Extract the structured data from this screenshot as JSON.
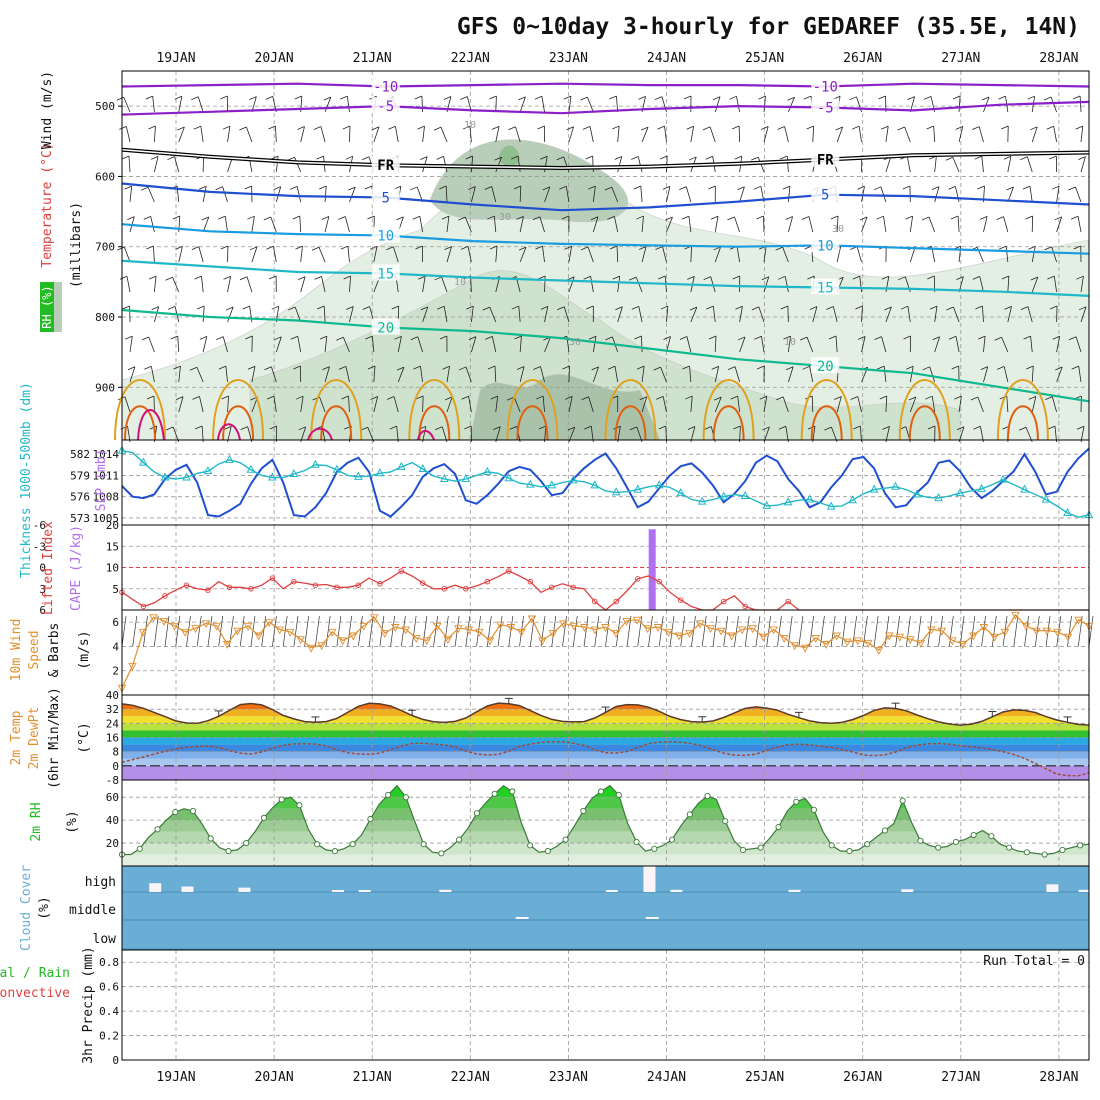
{
  "title": "GFS 0~10day 3-hourly for GEDAREF (35.5E, 14N)",
  "colors": {
    "purple": "#8b1fc8",
    "blue": "#1f4fd0",
    "lightblue": "#1a9ce0",
    "cyan": "#20b8c8",
    "teal": "#10b890",
    "orange": "#e0a020",
    "darkorange": "#e06010",
    "magenta": "#d0107a",
    "red": "#e04040",
    "cape": "#b070f0",
    "wind10": "#e09030",
    "green": "#22bb22",
    "cloud": "#6aaed6",
    "frontline": "#000000"
  },
  "chart_data": [
    {
      "type": "contour",
      "panel": "upper-air",
      "ylabel_parts": [
        "RH (%)",
        "Temperature (°C)",
        "Wind (m/s)"
      ],
      "ylabel_unit": "(millibars)",
      "y_ticks": [
        500,
        600,
        700,
        800,
        900
      ],
      "ylim": [
        450,
        975
      ],
      "dates": [
        "19JAN",
        "20JAN",
        "21JAN",
        "22JAN",
        "23JAN",
        "24JAN",
        "25JAN",
        "26JAN",
        "27JAN",
        "28JAN"
      ],
      "temperature_isotherms": [
        {
          "label": "-10",
          "color": "purple",
          "levels": [
            472,
            470,
            468,
            472,
            470,
            468,
            470,
            470,
            472,
            468,
            470,
            472
          ]
        },
        {
          "label": "-5",
          "color": "purple",
          "levels": [
            512,
            508,
            504,
            500,
            506,
            510,
            504,
            500,
            502,
            506,
            498,
            494
          ]
        },
        {
          "label": "FR",
          "color": "frontline",
          "levels": [
            562,
            572,
            580,
            584,
            586,
            588,
            586,
            582,
            576,
            570,
            568,
            566
          ]
        },
        {
          "label": "5",
          "color": "blue",
          "levels": [
            610,
            622,
            628,
            630,
            640,
            648,
            644,
            636,
            626,
            628,
            634,
            640
          ]
        },
        {
          "label": "10",
          "color": "lightblue",
          "levels": [
            668,
            678,
            682,
            684,
            692,
            696,
            698,
            700,
            698,
            702,
            706,
            710
          ]
        },
        {
          "label": "15",
          "color": "cyan",
          "levels": [
            720,
            728,
            736,
            738,
            744,
            748,
            752,
            756,
            758,
            760,
            764,
            770
          ]
        },
        {
          "label": "20",
          "color": "teal",
          "levels": [
            790,
            800,
            805,
            815,
            820,
            830,
            845,
            860,
            870,
            880,
            900,
            920
          ]
        }
      ],
      "rh_labels": [
        "10",
        "30",
        "30",
        "10",
        "30",
        "10"
      ]
    },
    {
      "type": "line",
      "panel": "thickness-slp",
      "ylabel_left": "Thickness 1000-500mb (dm)",
      "ylabel_right": "SLP (mb)",
      "thickness_ticks": [
        582,
        579,
        576,
        573
      ],
      "slp_ticks": [
        1014,
        1011,
        1008,
        1005
      ],
      "slp_range": [
        1004,
        1016
      ],
      "slp": [
        1009.5,
        1008,
        1007.8,
        1008.3,
        1010.5,
        1011.8,
        1012.5,
        1010,
        1005.4,
        1005.2,
        1006,
        1007,
        1009.8,
        1012,
        1013.2,
        1010,
        1005.4,
        1005.2,
        1006.5,
        1008.5,
        1011.5,
        1012.8,
        1013.5,
        1011.5,
        1006,
        1005.2,
        1006.6,
        1008.2,
        1010.8,
        1012,
        1012.6,
        1011.2,
        1007.5,
        1007,
        1008.2,
        1009.8,
        1011.6,
        1012.2,
        1011.8,
        1010.2,
        1008.2,
        1008.5,
        1010.5,
        1012,
        1013.2,
        1014.1,
        1012,
        1009.3,
        1006.5,
        1007.3,
        1009.2,
        1011,
        1012.3,
        1012.7,
        1011.4,
        1009.6,
        1007.2,
        1008.4,
        1010.2,
        1012.8,
        1013.8,
        1013,
        1010.5,
        1008.8,
        1006.5,
        1007.2,
        1009.3,
        1011,
        1013.3,
        1013.6,
        1012,
        1008.5,
        1006.5,
        1006.8,
        1008.6,
        1010,
        1012.8,
        1013.1,
        1011.6,
        1009.3,
        1007.8,
        1008.8,
        1010.2,
        1011.6,
        1014,
        1011.5,
        1008.3,
        1008.7,
        1011.5,
        1013.4,
        1014.8
      ],
      "thickness_range": [
        572,
        584
      ],
      "thickness": [
        582.5,
        582.2,
        580.8,
        579.5,
        578.7,
        578.5,
        578.7,
        579.3,
        579.6,
        580.6,
        581.2,
        580.8,
        579.8,
        579,
        578.7,
        578.7,
        579.2,
        579.7,
        580.5,
        580.4,
        579.8,
        579,
        578.8,
        578.9,
        579.3,
        579.5,
        580.2,
        580.8,
        579.9,
        578.9,
        578.5,
        578.2,
        578.5,
        579,
        579.5,
        579.3,
        578.6,
        577.9,
        577.7,
        577.4,
        577.6,
        578,
        578.3,
        578.1,
        577.6,
        576.8,
        576.6,
        576.7,
        577,
        577.4,
        577.6,
        577.3,
        576.5,
        575.6,
        575.3,
        575.6,
        576,
        576.3,
        576.1,
        575.4,
        574.7,
        574.8,
        575.2,
        575.5,
        575.6,
        575.1,
        574.6,
        574.7,
        575.5,
        576.4,
        577,
        577.2,
        577.4,
        577,
        576.3,
        575.9,
        575.8,
        576.1,
        576.5,
        576.8,
        577.1,
        577.7,
        578.4,
        577.7,
        577,
        576.3,
        575.6,
        574.7,
        573.7,
        573.1,
        573.4
      ]
    },
    {
      "type": "bar",
      "panel": "cape-lifted-index",
      "ylabel_left": "Lifted Index",
      "ylabel_right": "CAPE (J/kg)",
      "li_ticks": [
        "-6",
        "-3",
        "0",
        "3",
        "6"
      ],
      "cape_ticks": [
        "20",
        "15",
        "10",
        "5"
      ],
      "li_range": [
        -6,
        6
      ],
      "cape_range": [
        0,
        20
      ],
      "cape": [
        {
          "x": 49.3,
          "value": 19
        }
      ],
      "lifted_index": [
        3.5,
        4.5,
        5.5,
        5,
        4,
        3.2,
        2.5,
        3,
        3.2,
        2,
        2.8,
        2.8,
        3,
        2.5,
        1.5,
        3,
        2,
        2.2,
        2.5,
        2.4,
        2.8,
        2.8,
        2.5,
        1.5,
        2.3,
        1.5,
        0.5,
        1.2,
        2.2,
        3,
        3,
        2.5,
        3,
        2.6,
        2,
        1.3,
        0.5,
        1.2,
        2,
        3.5,
        2.8,
        2.3,
        2.8,
        3,
        4.8,
        6,
        4.8,
        3.3,
        1.6,
        1.2,
        2,
        3.5,
        4.6,
        5.5,
        6,
        6,
        4.8,
        4,
        5.5,
        6,
        6,
        6,
        4.8,
        6,
        6,
        6,
        6,
        6,
        6,
        6,
        6,
        6,
        6,
        6,
        6,
        6,
        6,
        6,
        6,
        6,
        6,
        6,
        6,
        6,
        6,
        6,
        6,
        6,
        6,
        6,
        6
      ]
    },
    {
      "type": "line",
      "panel": "wind-10m",
      "ylabel_parts": [
        "10m Wind",
        "Speed",
        "& Barbs"
      ],
      "ylabel_unit": "(m/s)",
      "ticks": [
        "6",
        "4",
        "2"
      ],
      "ylim": [
        0,
        7
      ],
      "speed": [
        0.6,
        2.4,
        5.2,
        6.4,
        6.1,
        5.7,
        5.2,
        5.5,
        5.9,
        5.7,
        4.2,
        5.3,
        5.7,
        4.9,
        6,
        5.4,
        5.2,
        4.6,
        3.9,
        4.1,
        5.2,
        4.5,
        4.9,
        5.7,
        6.4,
        5.1,
        5.6,
        5.4,
        4.7,
        4.5,
        5.7,
        4.6,
        5.5,
        5.4,
        5.2,
        4.5,
        5.8,
        5.6,
        5.2,
        6.3,
        4.5,
        5.1,
        5.9,
        5.7,
        5.6,
        5.4,
        5.6,
        5.1,
        6.1,
        6.2,
        5.5,
        5.6,
        5.2,
        4.9,
        5.1,
        5.9,
        5.5,
        5.3,
        4.9,
        5.4,
        5.5,
        4.8,
        5.4,
        4.7,
        4.1,
        3.9,
        4.7,
        4.2,
        4.9,
        4.4,
        4.5,
        4.3,
        3.7,
        4.9,
        4.8,
        4.6,
        4.3,
        5.4,
        5.3,
        4.5,
        4.2,
        4.9,
        5.6,
        4.8,
        5.2,
        6.6,
        5.7,
        5.3,
        5.3,
        5.2,
        4.8,
        6.2,
        5.7
      ]
    },
    {
      "type": "area",
      "panel": "temp-dewpoint",
      "ylabel_parts": [
        "2m Temp",
        "2m DewPt",
        "(6hr Min/Max)"
      ],
      "ylabel_unit": "(°C)",
      "ticks": [
        "40",
        "32",
        "24",
        "16",
        "8",
        "0",
        "-8"
      ],
      "ylim": [
        -8,
        40
      ],
      "temperature": [
        35,
        34.2,
        32.5,
        30.2,
        27.8,
        25.4,
        24.2,
        24,
        25.5,
        28,
        31.3,
        34.6,
        35.2,
        34.4,
        31.8,
        28.5,
        26.5,
        25,
        24.6,
        25,
        26.8,
        30.2,
        33.6,
        35.3,
        35,
        33.8,
        31.2,
        28.4,
        26.2,
        24.9,
        24.5,
        25.1,
        27,
        30.5,
        33.8,
        35.4,
        35.1,
        34,
        31.2,
        28.5,
        26.2,
        25.1,
        24.8,
        25,
        27,
        30.2,
        33.5,
        34.6,
        34.4,
        33.1,
        30.8,
        27.9,
        26.1,
        25,
        24.7,
        25.3,
        27.3,
        29.9,
        32.5,
        33.3,
        32.6,
        31.4,
        29.1,
        27.2,
        25.4,
        24.4,
        24,
        24.5,
        26.1,
        28.4,
        31.3,
        32.7,
        32.4,
        31.1,
        28.7,
        26.6,
        24.8,
        23.6,
        23,
        23.5,
        25.1,
        27.7,
        30.4,
        31.6,
        31.3,
        30.1,
        27.8,
        25.9,
        24.6,
        23.4,
        23
      ],
      "dewpoint": [
        2,
        3.5,
        5,
        6.6,
        8.2,
        9.6,
        10.4,
        10.9,
        11.2,
        10.4,
        8.6,
        7.2,
        6.6,
        7.8,
        9.9,
        11.6,
        12.4,
        12.5,
        12.3,
        11.2,
        9.1,
        7.4,
        6.7,
        6.5,
        7.2,
        9.3,
        11.2,
        12.6,
        12.8,
        12.3,
        11.8,
        10.6,
        8.4,
        6.7,
        6.1,
        6.5,
        8.2,
        10.9,
        12.3,
        13.3,
        13.6,
        13.5,
        12.8,
        11.5,
        9.1,
        7.4,
        7.2,
        8.1,
        10.2,
        12.5,
        13.4,
        13.6,
        13.3,
        12.6,
        11.2,
        9.1,
        7.2,
        6.1,
        5.9,
        6.6,
        8.8,
        10.6,
        11.9,
        12.2,
        11.8,
        11.1,
        10.4,
        9.2,
        7.8,
        6.2,
        5.7,
        6.3,
        7.8,
        10.2,
        11.6,
        12.4,
        12.6,
        12.2,
        11.3,
        10.8,
        10.1,
        9.2,
        8,
        6.4,
        4.2,
        1.4,
        -1.6,
        -4.6,
        -5.5,
        -5.6,
        -4
      ]
    },
    {
      "type": "area",
      "panel": "rh-2m",
      "ylabel": "2m RH",
      "ylabel_unit": "(%)",
      "ticks": [
        "60",
        "40",
        "20"
      ],
      "ylim": [
        0,
        75
      ],
      "values": [
        10,
        10,
        15,
        25,
        32,
        40,
        47,
        50,
        48,
        37,
        24,
        16,
        13,
        14,
        20,
        30,
        42,
        51,
        58,
        60,
        53,
        32,
        19,
        14,
        13,
        15,
        19,
        27,
        41,
        54,
        62,
        70,
        60,
        39,
        19,
        12,
        11,
        16,
        23,
        33,
        46,
        55,
        63,
        70,
        65,
        38,
        18,
        12,
        13,
        17,
        23,
        35,
        48,
        59,
        65,
        70,
        62,
        37,
        21,
        13,
        15,
        18,
        23,
        35,
        45,
        55,
        61,
        58,
        39,
        22,
        14,
        15,
        16,
        24,
        34,
        48,
        56,
        59,
        49,
        30,
        18,
        13,
        13,
        14,
        19,
        25,
        31,
        37,
        57,
        38,
        22,
        18,
        16,
        17,
        21,
        23,
        27,
        31,
        26,
        19,
        16,
        13,
        12,
        11,
        10,
        11,
        14,
        16,
        18,
        19
      ]
    },
    {
      "type": "bar",
      "panel": "cloud-cover",
      "ylabel": "Cloud Cover",
      "ylabel_unit": "(%)",
      "levels": [
        "high",
        "middle",
        "low"
      ],
      "high_cloud": [
        {
          "x": 3,
          "value": 0.8
        },
        {
          "x": 6,
          "value": 0.5
        },
        {
          "x": 11.3,
          "value": 0.4
        },
        {
          "x": 20,
          "value": 0.15
        },
        {
          "x": 22.5,
          "value": 0.15
        },
        {
          "x": 30,
          "value": 0.2
        },
        {
          "x": 45.5,
          "value": 0.1
        },
        {
          "x": 49,
          "value": 2.4
        },
        {
          "x": 51.5,
          "value": 0.2
        },
        {
          "x": 62.5,
          "value": 0.2
        },
        {
          "x": 73,
          "value": 0.25
        },
        {
          "x": 86.5,
          "value": 0.7
        },
        {
          "x": 89.5,
          "value": 0.2
        },
        {
          "x": 94.5,
          "value": 0.1
        }
      ],
      "mid_cloud": [
        {
          "x": 37.2,
          "value": 0.2
        },
        {
          "x": 49.3,
          "value": 0.3
        }
      ]
    },
    {
      "type": "bar",
      "panel": "precipitation",
      "ylabel_parts": [
        "3hr Precip (mm)"
      ],
      "legend_total_rain": "Total / Rain",
      "legend_convective": "Convective",
      "run_total": "Run Total = 0",
      "ticks": [
        "0.8",
        "0.6",
        "0.4",
        "0.2",
        "0"
      ],
      "ylim": [
        0,
        0.9
      ],
      "values": []
    }
  ]
}
